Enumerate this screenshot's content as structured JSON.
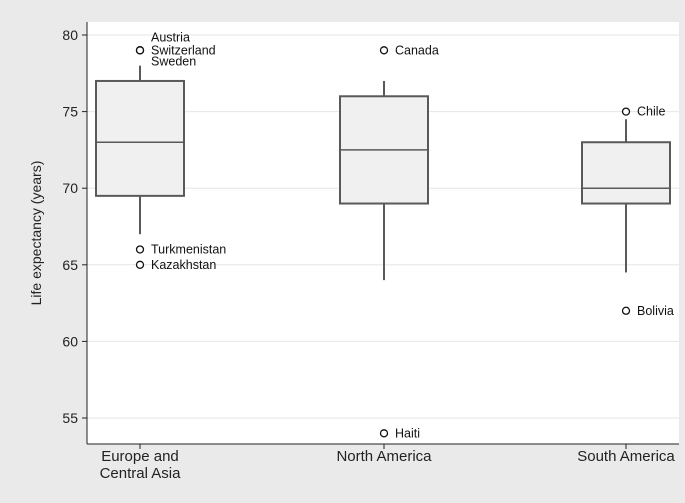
{
  "chart_data": {
    "type": "box",
    "title": "",
    "xlabel": "",
    "ylabel": "Life expectancy (years)",
    "ylim": [
      52.5,
      81.5
    ],
    "yticks": [
      55,
      60,
      65,
      70,
      75,
      80
    ],
    "grid": true,
    "legend": "none",
    "categories": [
      {
        "label_lines": [
          "Europe and",
          "Central Asia"
        ],
        "q1": 69.5,
        "median": 73,
        "q3": 77,
        "whisker_low": 67,
        "whisker_high": 78,
        "outliers": [
          {
            "value": 79,
            "label": "Austria"
          },
          {
            "value": 79,
            "label": "Switzerland"
          },
          {
            "value": 79,
            "label": "Sweden"
          },
          {
            "value": 66,
            "label": "Turkmenistan"
          },
          {
            "value": 65,
            "label": "Kazakhstan"
          }
        ]
      },
      {
        "label_lines": [
          "North America"
        ],
        "q1": 69,
        "median": 72.5,
        "q3": 76,
        "whisker_low": 64,
        "whisker_high": 77,
        "outliers": [
          {
            "value": 79,
            "label": "Canada"
          },
          {
            "value": 54,
            "label": "Haiti"
          }
        ]
      },
      {
        "label_lines": [
          "South America"
        ],
        "q1": 69,
        "median": 70,
        "q3": 73,
        "whisker_low": 64.5,
        "whisker_high": 74.5,
        "outliers": [
          {
            "value": 75,
            "label": "Chile"
          },
          {
            "value": 62,
            "label": "Bolivia"
          }
        ]
      }
    ],
    "colors": {
      "outer_bg": "#eaeaea",
      "plot_bg": "#ffffff",
      "box_fill": "#f0f0f0",
      "box_stroke": "#595959",
      "grid": "#e6e6e6"
    }
  }
}
